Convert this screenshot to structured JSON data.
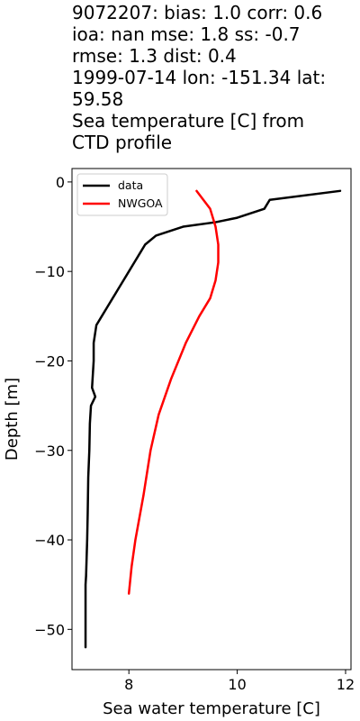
{
  "title_lines": [
    "9072207: bias: 1.0  corr: 0.6",
    " ioa: nan  mse: 1.8  ss: -0.7",
    "rmse: 1.3  dist: 0.4",
    "1999-07-14 lon: -151.34 lat:",
    "59.58",
    "Sea temperature [C] from",
    "CTD profile"
  ],
  "chart_data": {
    "type": "line",
    "title": "9072207: bias: 1.0  corr: 0.6  ioa: nan  mse: 1.8  ss: -0.7 rmse: 1.3  dist: 0.4 1999-07-14 lon: -151.34 lat: 59.58 Sea temperature [C] from CTD profile",
    "xlabel": "Sea water temperature [C]",
    "ylabel": "Depth [m]",
    "xlim": [
      6.95,
      12.1
    ],
    "ylim": [
      -54.5,
      1.5
    ],
    "x_ticks": [
      8,
      10,
      12
    ],
    "y_ticks": [
      0,
      -10,
      -20,
      -30,
      -40,
      -50
    ],
    "x_tick_labels": [
      "8",
      "10",
      "12"
    ],
    "y_tick_labels": [
      "0",
      "−10",
      "−20",
      "−30",
      "−40",
      "−50"
    ],
    "grid": false,
    "legend_position": "top-left",
    "series": [
      {
        "name": "data",
        "color": "#000000",
        "x": [
          11.9,
          10.6,
          10.5,
          10.0,
          9.6,
          9.0,
          8.5,
          8.3,
          8.2,
          8.1,
          8.0,
          7.9,
          7.8,
          7.7,
          7.6,
          7.5,
          7.4,
          7.35,
          7.35,
          7.33,
          7.32,
          7.38,
          7.3,
          7.28,
          7.27,
          7.25,
          7.24,
          7.23,
          7.22,
          7.21,
          7.2,
          7.2,
          7.2,
          7.2
        ],
        "y": [
          -1,
          -2,
          -3,
          -4,
          -4.5,
          -5,
          -6,
          -7,
          -8,
          -9,
          -10,
          -11,
          -12,
          -13,
          -14,
          -15,
          -16,
          -18,
          -20,
          -22,
          -23,
          -24,
          -25,
          -27,
          -30,
          -33,
          -37,
          -40,
          -42,
          -44,
          -45,
          -48,
          -50,
          -52
        ]
      },
      {
        "name": "NWGOA",
        "color": "#ff0000",
        "x": [
          9.25,
          9.5,
          9.6,
          9.65,
          9.65,
          9.6,
          9.5,
          9.3,
          9.05,
          8.78,
          8.55,
          8.4,
          8.27,
          8.12,
          8.05,
          8.0
        ],
        "y": [
          -1,
          -3,
          -5,
          -7,
          -9,
          -11,
          -13,
          -15,
          -18,
          -22,
          -26,
          -30,
          -35,
          -40,
          -43,
          -46
        ]
      }
    ]
  }
}
